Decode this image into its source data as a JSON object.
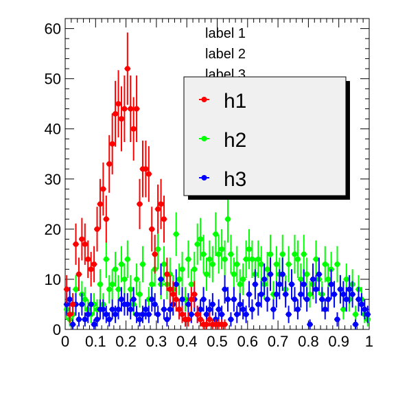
{
  "chart_data": {
    "type": "scatter",
    "title": "",
    "xlabel": "",
    "ylabel": "",
    "xlim": [
      0,
      1
    ],
    "ylim": [
      0,
      62
    ],
    "x_ticks": [
      "0",
      "0.1",
      "0.2",
      "0.3",
      "0.4",
      "0.5",
      "0.6",
      "0.7",
      "0.8",
      "0.9",
      "1"
    ],
    "y_ticks": [
      "0",
      "10",
      "20",
      "30",
      "40",
      "50",
      "60"
    ],
    "x_tick_values": [
      0,
      0.1,
      0.2,
      0.3,
      0.4,
      0.5,
      0.6,
      0.7,
      0.8,
      0.9,
      1.0
    ],
    "y_tick_values": [
      0,
      10,
      20,
      30,
      40,
      50,
      60
    ],
    "grid": false,
    "legend_position": "top-right",
    "annotations": [
      "label 1",
      "label 2",
      "label 3"
    ],
    "series": [
      {
        "name": "h1",
        "color": "#ff0000",
        "x": [
          0.005,
          0.015,
          0.025,
          0.035,
          0.045,
          0.055,
          0.065,
          0.075,
          0.085,
          0.095,
          0.105,
          0.115,
          0.125,
          0.135,
          0.145,
          0.155,
          0.165,
          0.175,
          0.185,
          0.195,
          0.205,
          0.215,
          0.225,
          0.235,
          0.245,
          0.255,
          0.265,
          0.275,
          0.285,
          0.295,
          0.305,
          0.315,
          0.325,
          0.335,
          0.345,
          0.355,
          0.365,
          0.375,
          0.385,
          0.395,
          0.405,
          0.415,
          0.425,
          0.435,
          0.445,
          0.455,
          0.465,
          0.475,
          0.485,
          0.495,
          0.505,
          0.515,
          0.525
        ],
        "y": [
          8,
          3,
          5,
          17,
          11,
          18,
          17,
          14,
          12,
          13,
          20,
          25,
          28,
          22,
          33,
          37,
          43,
          45,
          42,
          44,
          52,
          44,
          40,
          44,
          25,
          32,
          32,
          31,
          20,
          15,
          24,
          25,
          22,
          11,
          8,
          7,
          6,
          4,
          3,
          2,
          2,
          6,
          7,
          3,
          2,
          1,
          1,
          2,
          1,
          1,
          1,
          1,
          1
        ]
      },
      {
        "name": "h2",
        "color": "#00ff00",
        "x": [
          0.005,
          0.015,
          0.025,
          0.035,
          0.045,
          0.055,
          0.065,
          0.075,
          0.085,
          0.095,
          0.105,
          0.115,
          0.125,
          0.135,
          0.145,
          0.155,
          0.165,
          0.175,
          0.185,
          0.195,
          0.205,
          0.215,
          0.225,
          0.235,
          0.245,
          0.255,
          0.265,
          0.275,
          0.285,
          0.295,
          0.305,
          0.315,
          0.325,
          0.335,
          0.345,
          0.355,
          0.365,
          0.375,
          0.385,
          0.395,
          0.405,
          0.415,
          0.425,
          0.435,
          0.445,
          0.455,
          0.465,
          0.475,
          0.485,
          0.495,
          0.505,
          0.515,
          0.525,
          0.535,
          0.545,
          0.555,
          0.565,
          0.575,
          0.585,
          0.595,
          0.605,
          0.615,
          0.625,
          0.635,
          0.645,
          0.655,
          0.665,
          0.675,
          0.685,
          0.695,
          0.705,
          0.715,
          0.725,
          0.735,
          0.745,
          0.755,
          0.765,
          0.775,
          0.785,
          0.795,
          0.805,
          0.815,
          0.825,
          0.835,
          0.845,
          0.855,
          0.865,
          0.875,
          0.885,
          0.895,
          0.905,
          0.915,
          0.925,
          0.935,
          0.945,
          0.955,
          0.965,
          0.975,
          0.985,
          0.995
        ],
        "y": [
          4,
          2,
          3,
          8,
          11,
          7,
          6,
          4,
          3,
          5,
          4,
          9,
          5,
          14,
          8,
          9,
          12,
          8,
          13,
          10,
          14,
          8,
          5,
          10,
          7,
          13,
          4,
          6,
          9,
          12,
          16,
          9,
          13,
          9,
          11,
          8,
          19,
          10,
          12,
          6,
          14,
          9,
          12,
          17,
          18,
          15,
          11,
          14,
          13,
          19,
          15,
          16,
          14,
          22,
          15,
          11,
          13,
          9,
          10,
          14,
          16,
          14,
          11,
          14,
          13,
          9,
          12,
          15,
          7,
          13,
          11,
          15,
          8,
          13,
          9,
          15,
          14,
          10,
          15,
          11,
          7,
          9,
          14,
          10,
          7,
          13,
          10,
          12,
          7,
          13,
          8,
          4,
          10,
          6,
          9,
          3,
          8,
          6,
          3,
          2
        ]
      },
      {
        "name": "h3",
        "color": "#0000ff",
        "x": [
          0.005,
          0.015,
          0.025,
          0.035,
          0.045,
          0.055,
          0.065,
          0.075,
          0.085,
          0.095,
          0.105,
          0.115,
          0.125,
          0.135,
          0.145,
          0.155,
          0.165,
          0.175,
          0.185,
          0.195,
          0.205,
          0.215,
          0.225,
          0.235,
          0.245,
          0.255,
          0.265,
          0.275,
          0.285,
          0.295,
          0.305,
          0.315,
          0.325,
          0.335,
          0.345,
          0.355,
          0.365,
          0.375,
          0.385,
          0.395,
          0.405,
          0.415,
          0.425,
          0.435,
          0.445,
          0.455,
          0.465,
          0.475,
          0.485,
          0.495,
          0.505,
          0.515,
          0.525,
          0.535,
          0.545,
          0.555,
          0.565,
          0.575,
          0.585,
          0.595,
          0.605,
          0.615,
          0.625,
          0.635,
          0.645,
          0.655,
          0.665,
          0.675,
          0.685,
          0.695,
          0.705,
          0.715,
          0.725,
          0.735,
          0.745,
          0.755,
          0.765,
          0.775,
          0.785,
          0.795,
          0.805,
          0.815,
          0.825,
          0.835,
          0.845,
          0.855,
          0.865,
          0.875,
          0.885,
          0.895,
          0.905,
          0.915,
          0.925,
          0.935,
          0.945,
          0.955,
          0.965,
          0.975,
          0.985,
          0.995
        ],
        "y": [
          5,
          6,
          1,
          5,
          2,
          5,
          2,
          3,
          5,
          1,
          2,
          4,
          4,
          3,
          2,
          4,
          3,
          4,
          6,
          5,
          5,
          4,
          6,
          3,
          2,
          3,
          4,
          3,
          6,
          5,
          3,
          10,
          4,
          2,
          4,
          5,
          9,
          4,
          6,
          2,
          5,
          3,
          6,
          3,
          4,
          6,
          3,
          4,
          5,
          2,
          4,
          3,
          8,
          6,
          2,
          6,
          3,
          5,
          4,
          3,
          7,
          4,
          9,
          5,
          7,
          10,
          6,
          11,
          4,
          7,
          9,
          11,
          7,
          3,
          9,
          6,
          4,
          7,
          9,
          6,
          1,
          10,
          8,
          11,
          6,
          4,
          6,
          9,
          7,
          2,
          8,
          7,
          6,
          8,
          7,
          1,
          6,
          5,
          4,
          3
        ]
      }
    ]
  }
}
